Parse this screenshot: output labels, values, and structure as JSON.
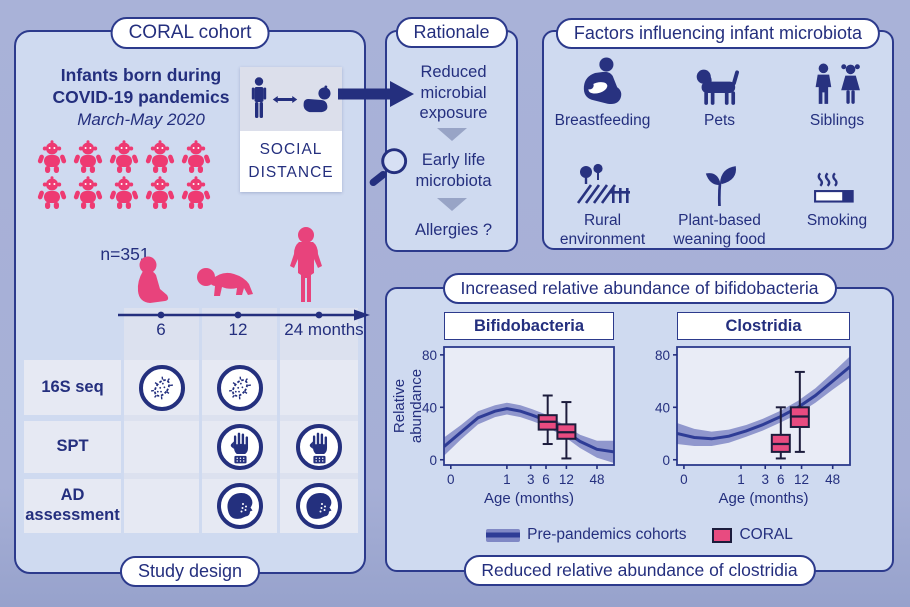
{
  "colors": {
    "background": "#a6afd6",
    "panel_fill": "#cfdaf0",
    "panel_border": "#2c3a8c",
    "navy": "#242f7e",
    "pink": "#e8437c",
    "plot_bg": "#e9ecf6",
    "band_fill": "#8088c5",
    "band_line": "#2e3c96",
    "box_fill": "#e84b80",
    "box_stroke": "#1c1c3c",
    "triangle_gray": "#98a4c6"
  },
  "left_panel": {
    "title_badge": "CORAL cohort",
    "bottom_badge": "Study design",
    "headline_line1": "Infants born during",
    "headline_line2": "COVID-19 pandemics",
    "headline_line3": "March-May 2020",
    "n_label": "n=351",
    "pictogram_count": 10,
    "social_distance_line1": "SOCIAL",
    "social_distance_line2": "DISTANCE",
    "timeline_ticks": [
      "6",
      "12",
      "24 months"
    ],
    "assessments": [
      {
        "label": "16S seq",
        "icon": "bacteria-icon",
        "timepoints_6_12_24": [
          true,
          true,
          false
        ]
      },
      {
        "label": "SPT",
        "icon": "skin-prick-hand-icon",
        "timepoints_6_12_24": [
          false,
          true,
          true
        ]
      },
      {
        "label": "AD assessment",
        "icon": "eczema-face-icon",
        "timepoints_6_12_24": [
          false,
          true,
          true
        ]
      }
    ]
  },
  "rationale": {
    "badge": "Rationale",
    "steps": [
      "Reduced microbial exposure",
      "Early life microbiota",
      "Allergies ?"
    ]
  },
  "factors": {
    "badge": "Factors influencing infant microbiota",
    "items": [
      {
        "label": "Breastfeeding",
        "icon": "breastfeeding-icon"
      },
      {
        "label": "Pets",
        "icon": "dog-icon"
      },
      {
        "label": "Siblings",
        "icon": "siblings-icon"
      },
      {
        "label": "Rural environment",
        "icon": "farm-field-icon"
      },
      {
        "label": "Plant-based weaning food",
        "icon": "plant-sprout-icon"
      },
      {
        "label": "Smoking",
        "icon": "cigarette-icon"
      }
    ]
  },
  "results": {
    "banner_top": "Increased relative abundance of bifidobacteria",
    "banner_bottom": "Reduced relative abundance of clostridia",
    "legend": [
      {
        "label": "Pre-pandemics cohorts",
        "swatch": "blue-band"
      },
      {
        "label": "CORAL",
        "swatch": "pink-box"
      }
    ]
  },
  "chart_data": [
    {
      "type": "line",
      "subtype": "smoothed trend with confidence band plus boxplots",
      "title": "Bifidobacteria",
      "xlabel": "Age (months)",
      "ylabel": "Relative abundance",
      "yticks": [
        0,
        40,
        80
      ],
      "ylim": [
        0,
        80
      ],
      "xticks": [
        "0",
        "1",
        "3",
        "6",
        "12",
        "48"
      ],
      "xtick_pos": [
        0.04,
        0.37,
        0.51,
        0.6,
        0.72,
        0.9
      ],
      "x_scale_note": "nonlinear log-like age axis",
      "series": [
        {
          "name": "Pre-pandemics cohorts",
          "style": "band",
          "x_frac": [
            0,
            0.1,
            0.2,
            0.3,
            0.37,
            0.45,
            0.52,
            0.6,
            0.72,
            0.8,
            0.9,
            1.0
          ],
          "center": [
            10,
            21,
            32,
            37,
            39,
            37,
            34,
            30,
            21,
            14,
            8,
            6
          ],
          "half_band": [
            7,
            5.5,
            5,
            4.5,
            4.5,
            4.5,
            4.5,
            4.5,
            4.5,
            5,
            6.5,
            8.5
          ]
        },
        {
          "name": "CORAL",
          "style": "boxplot",
          "boxes": [
            {
              "age_months": 6,
              "x_pos": 0.61,
              "whisker_low": 12,
              "q1": 23,
              "median": 29,
              "q3": 34,
              "whisker_high": 49
            },
            {
              "age_months": 12,
              "x_pos": 0.72,
              "whisker_low": 1,
              "q1": 16,
              "median": 21,
              "q3": 27,
              "whisker_high": 44
            }
          ]
        }
      ]
    },
    {
      "type": "line",
      "subtype": "smoothed trend with confidence band plus boxplots",
      "title": "Clostridia",
      "xlabel": "Age (months)",
      "ylabel": "",
      "yticks": [
        0,
        40,
        80
      ],
      "ylim": [
        0,
        80
      ],
      "xticks": [
        "0",
        "1",
        "3",
        "6",
        "12",
        "48"
      ],
      "xtick_pos": [
        0.04,
        0.37,
        0.51,
        0.6,
        0.72,
        0.9
      ],
      "x_scale_note": "nonlinear log-like age axis",
      "series": [
        {
          "name": "Pre-pandemics cohorts",
          "style": "band",
          "x_frac": [
            0,
            0.1,
            0.2,
            0.3,
            0.4,
            0.5,
            0.6,
            0.7,
            0.8,
            0.9,
            1.0
          ],
          "center": [
            20,
            17,
            16,
            18,
            22,
            27,
            33,
            40,
            49,
            60,
            71
          ],
          "half_band": [
            8,
            6.5,
            5.5,
            5,
            4.5,
            4.5,
            4.5,
            5,
            5.5,
            6.5,
            8
          ]
        },
        {
          "name": "CORAL",
          "style": "boxplot",
          "boxes": [
            {
              "age_months": 6,
              "x_pos": 0.6,
              "whisker_low": 1,
              "q1": 6,
              "median": 12,
              "q3": 19,
              "whisker_high": 40
            },
            {
              "age_months": 12,
              "x_pos": 0.71,
              "whisker_low": 6,
              "q1": 25,
              "median": 33,
              "q3": 40,
              "whisker_high": 67
            }
          ]
        }
      ]
    }
  ]
}
